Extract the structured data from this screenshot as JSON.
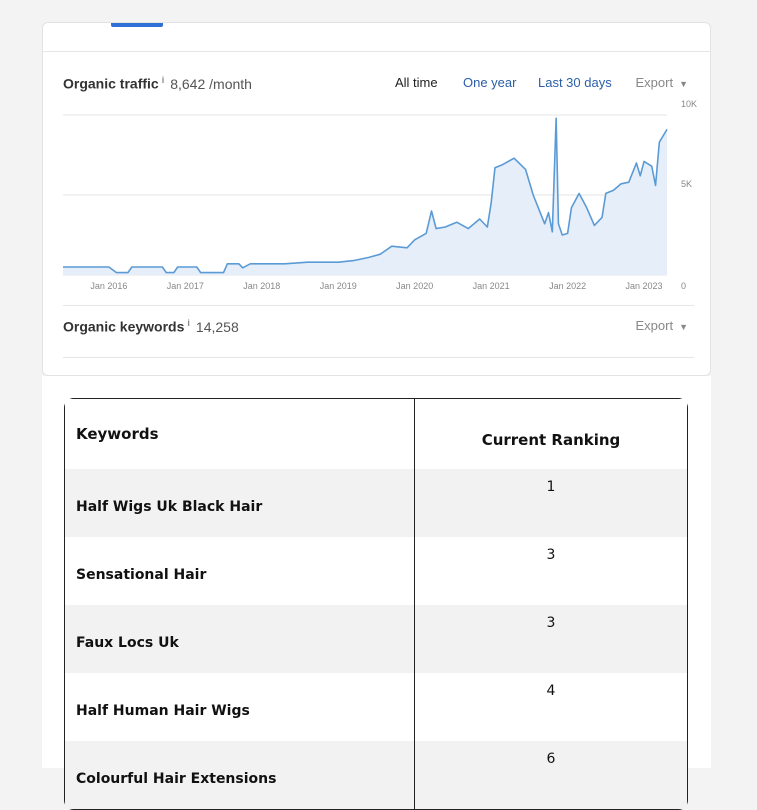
{
  "traffic": {
    "label": "Organic traffic",
    "info": "i",
    "value": "8,642 /month",
    "ranges": [
      "All time",
      "One year",
      "Last 30 days"
    ],
    "active_range": "All time",
    "export_label": "Export",
    "caret": "▼"
  },
  "keywords_metric": {
    "label": "Organic keywords",
    "info": "i",
    "value": "14,258",
    "export_label": "Export",
    "caret": "▼"
  },
  "chart_data": {
    "type": "area",
    "x_ticks": [
      "Jan 2016",
      "Jan 2017",
      "Jan 2018",
      "Jan 2019",
      "Jan 2020",
      "Jan 2021",
      "Jan 2022",
      "Jan 2023"
    ],
    "y_ticks": [
      "10K",
      "5K",
      "0"
    ],
    "ylim": [
      0,
      10000
    ],
    "xlim": [
      2015.4,
      2023.3
    ],
    "grid": true,
    "line_color": "#5b9bd5",
    "fill_color": "#e6eef9",
    "points": [
      [
        2015.4,
        500
      ],
      [
        2016.0,
        500
      ],
      [
        2016.1,
        150
      ],
      [
        2016.25,
        150
      ],
      [
        2016.3,
        500
      ],
      [
        2016.7,
        500
      ],
      [
        2016.75,
        150
      ],
      [
        2016.85,
        150
      ],
      [
        2016.9,
        500
      ],
      [
        2017.15,
        500
      ],
      [
        2017.2,
        150
      ],
      [
        2017.5,
        150
      ],
      [
        2017.55,
        700
      ],
      [
        2017.7,
        700
      ],
      [
        2017.75,
        450
      ],
      [
        2017.85,
        700
      ],
      [
        2018.0,
        700
      ],
      [
        2018.3,
        700
      ],
      [
        2018.6,
        800
      ],
      [
        2019.0,
        800
      ],
      [
        2019.2,
        900
      ],
      [
        2019.4,
        1100
      ],
      [
        2019.55,
        1300
      ],
      [
        2019.7,
        1800
      ],
      [
        2019.9,
        1700
      ],
      [
        2020.0,
        2200
      ],
      [
        2020.15,
        2600
      ],
      [
        2020.22,
        4000
      ],
      [
        2020.28,
        2900
      ],
      [
        2020.4,
        3000
      ],
      [
        2020.55,
        3300
      ],
      [
        2020.7,
        2900
      ],
      [
        2020.85,
        3500
      ],
      [
        2020.95,
        3000
      ],
      [
        2021.0,
        4500
      ],
      [
        2021.05,
        6700
      ],
      [
        2021.15,
        6900
      ],
      [
        2021.3,
        7300
      ],
      [
        2021.45,
        6600
      ],
      [
        2021.55,
        5000
      ],
      [
        2021.65,
        3800
      ],
      [
        2021.7,
        3200
      ],
      [
        2021.75,
        3900
      ],
      [
        2021.8,
        2700
      ],
      [
        2021.85,
        9800
      ],
      [
        2021.88,
        3200
      ],
      [
        2021.93,
        2500
      ],
      [
        2022.0,
        2600
      ],
      [
        2022.05,
        4200
      ],
      [
        2022.15,
        5100
      ],
      [
        2022.25,
        4200
      ],
      [
        2022.35,
        3100
      ],
      [
        2022.45,
        3600
      ],
      [
        2022.5,
        5100
      ],
      [
        2022.6,
        5300
      ],
      [
        2022.7,
        5700
      ],
      [
        2022.8,
        5800
      ],
      [
        2022.9,
        7000
      ],
      [
        2022.95,
        6200
      ],
      [
        2023.0,
        7100
      ],
      [
        2023.1,
        6800
      ],
      [
        2023.15,
        5600
      ],
      [
        2023.2,
        8300
      ],
      [
        2023.3,
        9100
      ]
    ]
  },
  "table": {
    "headers": [
      "Keywords",
      "Current Ranking"
    ],
    "rows": [
      {
        "keyword": "Half Wigs Uk Black Hair",
        "rank": "1"
      },
      {
        "keyword": "Sensational Hair",
        "rank": "3"
      },
      {
        "keyword": "Faux Locs Uk",
        "rank": "3"
      },
      {
        "keyword": "Half Human Hair Wigs",
        "rank": "4"
      },
      {
        "keyword": "Colourful Hair Extensions",
        "rank": "6"
      }
    ]
  }
}
